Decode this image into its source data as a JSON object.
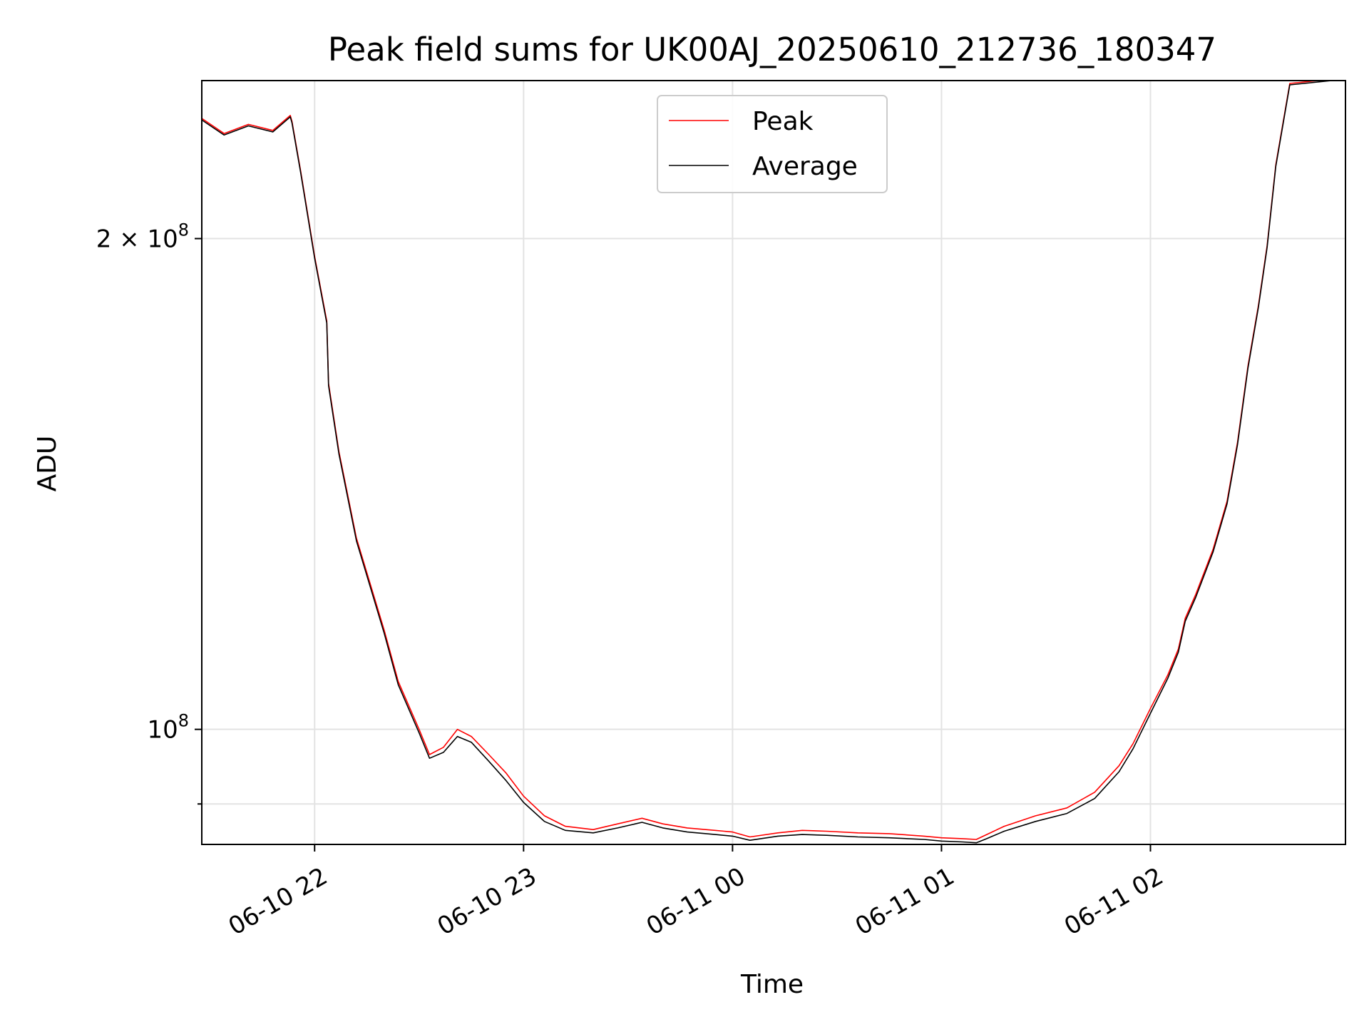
{
  "chart_data": {
    "type": "line",
    "title": "Peak field sums for UK00AJ_20250610_212736_180347",
    "xlabel": "Time",
    "ylabel": "ADU",
    "y_scale": "log",
    "ylim": [
      85000000,
      250000000
    ],
    "xlim": [
      "2025-06-10 21:27:36",
      "2025-06-11 02:56:00"
    ],
    "grid": true,
    "legend_position": "top-center",
    "x_ticks": [
      {
        "t": "2025-06-10 22:00:00",
        "label": "06-10 22"
      },
      {
        "t": "2025-06-10 23:00:00",
        "label": "06-10 23"
      },
      {
        "t": "2025-06-11 00:00:00",
        "label": "06-11 00"
      },
      {
        "t": "2025-06-11 01:00:00",
        "label": "06-11 01"
      },
      {
        "t": "2025-06-11 02:00:00",
        "label": "06-11 02"
      }
    ],
    "y_ticks": [
      {
        "value": 200000000,
        "label_base": "2 × 10",
        "label_exp": "8",
        "major": true
      },
      {
        "value": 100000000,
        "label_base": "10",
        "label_exp": "8",
        "major": true
      },
      {
        "value": 90000000,
        "label_base": "",
        "label_exp": "",
        "major": false
      }
    ],
    "series": [
      {
        "name": "Peak",
        "color": "#ff0000",
        "x": [
          "2025-06-10 21:27:36",
          "2025-06-10 21:34:00",
          "2025-06-10 21:41:00",
          "2025-06-10 21:48:00",
          "2025-06-10 21:53:00",
          "2025-06-10 21:53:30",
          "2025-06-10 21:56:00",
          "2025-06-10 22:00:00",
          "2025-06-10 22:03:30",
          "2025-06-10 22:04:00",
          "2025-06-10 22:07:00",
          "2025-06-10 22:12:00",
          "2025-06-10 22:20:00",
          "2025-06-10 22:24:00",
          "2025-06-10 22:30:00",
          "2025-06-10 22:33:00",
          "2025-06-10 22:37:00",
          "2025-06-10 22:41:00",
          "2025-06-10 22:45:00",
          "2025-06-10 22:50:00",
          "2025-06-10 22:55:00",
          "2025-06-10 23:00:00",
          "2025-06-10 23:06:00",
          "2025-06-10 23:12:00",
          "2025-06-10 23:20:00",
          "2025-06-10 23:27:00",
          "2025-06-10 23:34:00",
          "2025-06-10 23:40:00",
          "2025-06-10 23:47:00",
          "2025-06-10 23:55:00",
          "2025-06-11 00:00:00",
          "2025-06-11 00:05:00",
          "2025-06-11 00:13:00",
          "2025-06-11 00:20:00",
          "2025-06-11 00:27:00",
          "2025-06-11 00:36:00",
          "2025-06-11 00:45:00",
          "2025-06-11 00:55:00",
          "2025-06-11 01:00:00",
          "2025-06-11 01:06:00",
          "2025-06-11 01:10:00",
          "2025-06-11 01:13:00",
          "2025-06-11 01:18:00",
          "2025-06-11 01:27:00",
          "2025-06-11 01:36:00",
          "2025-06-11 01:44:00",
          "2025-06-11 01:51:00",
          "2025-06-11 01:55:00",
          "2025-06-11 02:00:00",
          "2025-06-11 02:05:00",
          "2025-06-11 02:08:00",
          "2025-06-11 02:10:00",
          "2025-06-11 02:13:00",
          "2025-06-11 02:18:00",
          "2025-06-11 02:22:00",
          "2025-06-11 02:25:00",
          "2025-06-11 02:28:00",
          "2025-06-11 02:31:00",
          "2025-06-11 02:33:30",
          "2025-06-11 02:36:00",
          "2025-06-11 02:40:00",
          "2025-06-11 02:56:00"
        ],
        "y": [
          237000000,
          232000000,
          235000000,
          233000000,
          238000000,
          236000000,
          220000000,
          195000000,
          178000000,
          163000000,
          148000000,
          131000000,
          115000000,
          107000000,
          100000000,
          96500000,
          97500000,
          100000000,
          99000000,
          96500000,
          94000000,
          91000000,
          88500000,
          87200000,
          86800000,
          87500000,
          88200000,
          87500000,
          87000000,
          86700000,
          86500000,
          85900000,
          86400000,
          86700000,
          86600000,
          86400000,
          86300000,
          86000000,
          85800000,
          85700000,
          85600000,
          86200000,
          87200000,
          88500000,
          89500000,
          91500000,
          95000000,
          98000000,
          103000000,
          108000000,
          112000000,
          117000000,
          121000000,
          129000000,
          138000000,
          150000000,
          167000000,
          182000000,
          198000000,
          222000000,
          249000000,
          251000000
        ]
      },
      {
        "name": "Average",
        "color": "#000000",
        "x": [
          "2025-06-10 21:27:36",
          "2025-06-10 21:34:00",
          "2025-06-10 21:41:00",
          "2025-06-10 21:48:00",
          "2025-06-10 21:53:00",
          "2025-06-10 21:53:30",
          "2025-06-10 21:56:00",
          "2025-06-10 22:00:00",
          "2025-06-10 22:03:30",
          "2025-06-10 22:04:00",
          "2025-06-10 22:07:00",
          "2025-06-10 22:12:00",
          "2025-06-10 22:20:00",
          "2025-06-10 22:24:00",
          "2025-06-10 22:30:00",
          "2025-06-10 22:33:00",
          "2025-06-10 22:37:00",
          "2025-06-10 22:41:00",
          "2025-06-10 22:45:00",
          "2025-06-10 22:50:00",
          "2025-06-10 22:55:00",
          "2025-06-10 23:00:00",
          "2025-06-10 23:06:00",
          "2025-06-10 23:12:00",
          "2025-06-10 23:20:00",
          "2025-06-10 23:27:00",
          "2025-06-10 23:34:00",
          "2025-06-10 23:40:00",
          "2025-06-10 23:47:00",
          "2025-06-10 23:55:00",
          "2025-06-11 00:00:00",
          "2025-06-11 00:05:00",
          "2025-06-11 00:13:00",
          "2025-06-11 00:20:00",
          "2025-06-11 00:27:00",
          "2025-06-11 00:36:00",
          "2025-06-11 00:45:00",
          "2025-06-11 00:55:00",
          "2025-06-11 01:00:00",
          "2025-06-11 01:06:00",
          "2025-06-11 01:10:00",
          "2025-06-11 01:13:00",
          "2025-06-11 01:18:00",
          "2025-06-11 01:27:00",
          "2025-06-11 01:36:00",
          "2025-06-11 01:44:00",
          "2025-06-11 01:51:00",
          "2025-06-11 01:55:00",
          "2025-06-11 02:00:00",
          "2025-06-11 02:05:00",
          "2025-06-11 02:08:00",
          "2025-06-11 02:10:00",
          "2025-06-11 02:13:00",
          "2025-06-11 02:18:00",
          "2025-06-11 02:22:00",
          "2025-06-11 02:25:00",
          "2025-06-11 02:28:00",
          "2025-06-11 02:31:00",
          "2025-06-11 02:33:30",
          "2025-06-11 02:36:00",
          "2025-06-11 02:40:00",
          "2025-06-11 02:56:00"
        ],
        "y": [
          236500000,
          231500000,
          234500000,
          232500000,
          237500000,
          235500000,
          219500000,
          194500000,
          177500000,
          162500000,
          147500000,
          130500000,
          114500000,
          106500000,
          99500000,
          96000000,
          96800000,
          99000000,
          98200000,
          95600000,
          93000000,
          90200000,
          87800000,
          86700000,
          86400000,
          87000000,
          87700000,
          87000000,
          86500000,
          86200000,
          86000000,
          85500000,
          86000000,
          86200000,
          86100000,
          85900000,
          85800000,
          85600000,
          85400000,
          85300000,
          85200000,
          85700000,
          86600000,
          87800000,
          88800000,
          90700000,
          94200000,
          97300000,
          102300000,
          107500000,
          111500000,
          116500000,
          120500000,
          128500000,
          137500000,
          149500000,
          166500000,
          181500000,
          197500000,
          221500000,
          248500000,
          250500000
        ]
      }
    ]
  }
}
